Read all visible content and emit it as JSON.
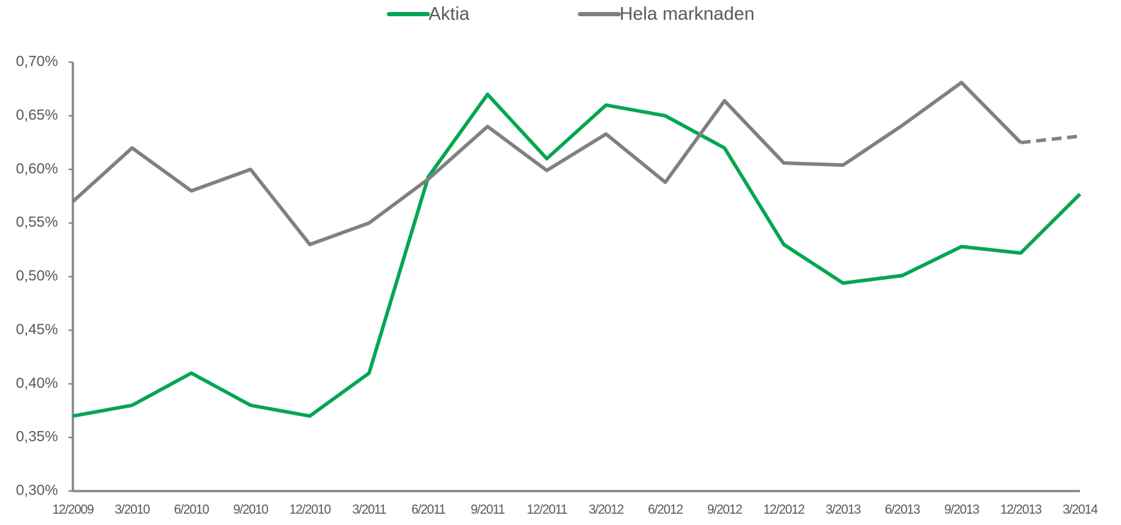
{
  "chart_data": {
    "type": "line",
    "categories": [
      "12/2009",
      "3/2010",
      "6/2010",
      "9/2010",
      "12/2010",
      "3/2011",
      "6/2011",
      "9/2011",
      "12/2011",
      "3/2012",
      "6/2012",
      "9/2012",
      "12/2012",
      "3/2013",
      "6/2013",
      "9/2013",
      "12/2013",
      "3/2014"
    ],
    "series": [
      {
        "name": "Aktia",
        "color": "#00a651",
        "values": [
          0.37,
          0.38,
          0.41,
          0.38,
          0.37,
          0.41,
          0.593,
          0.67,
          0.61,
          0.66,
          0.65,
          0.62,
          0.53,
          0.494,
          0.501,
          0.528,
          0.522,
          0.577
        ]
      },
      {
        "name": "Hela marknaden",
        "color": "#808080",
        "dashed_last": true,
        "values": [
          0.57,
          0.62,
          0.58,
          0.6,
          0.53,
          0.55,
          0.591,
          0.64,
          0.599,
          0.633,
          0.588,
          0.664,
          0.606,
          0.604,
          0.641,
          0.681,
          0.625,
          0.631
        ]
      }
    ],
    "ylim": [
      0.3,
      0.7
    ],
    "yticks": [
      {
        "value": 0.3,
        "label": "0,30%"
      },
      {
        "value": 0.35,
        "label": "0,35%"
      },
      {
        "value": 0.4,
        "label": "0,40%"
      },
      {
        "value": 0.45,
        "label": "0,45%"
      },
      {
        "value": 0.5,
        "label": "0,50%"
      },
      {
        "value": 0.55,
        "label": "0,55%"
      },
      {
        "value": 0.6,
        "label": "0,60%"
      },
      {
        "value": 0.65,
        "label": "0,65%"
      },
      {
        "value": 0.7,
        "label": "0,70%"
      }
    ],
    "legend": "top",
    "grid": false
  }
}
